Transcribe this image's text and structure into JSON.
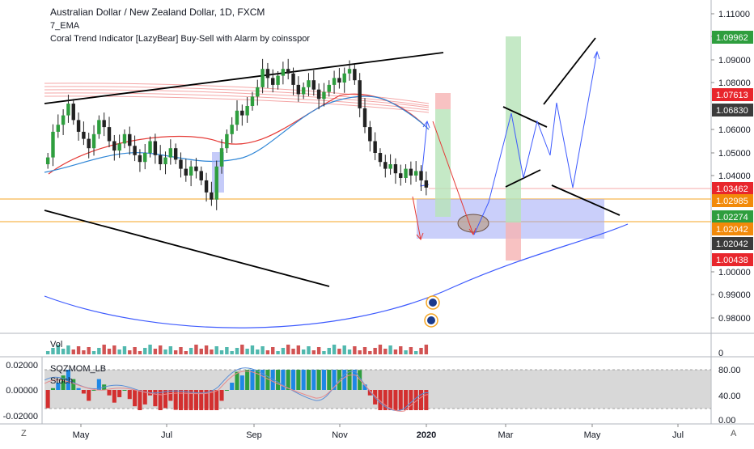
{
  "header": {
    "symbol_line": "Australian Dollar / New Zealand Dollar, 1D, FXCM",
    "indicator_1": "7_EMA",
    "indicator_2": "Coral Trend Indicator [LazyBear] Buy-Sell with Alarm by coinsspor"
  },
  "volume_pane": {
    "label": "Vol",
    "axis_label": "0"
  },
  "oscillator_pane": {
    "label": "SQZMOM_LB",
    "label_2": "Stoch",
    "left_ticks": [
      "0.02000",
      "0.00000",
      "-0.02000"
    ],
    "right_ticks": [
      "80.00",
      "40.00",
      "0.00"
    ]
  },
  "price_axis": {
    "ticks": [
      "1.11000",
      "1.10000",
      "1.09000",
      "1.08000",
      "1.06000",
      "1.05000",
      "1.04000",
      "1.00000",
      "0.99000",
      "0.98000"
    ],
    "badges": [
      {
        "text": "1.09962",
        "color": "#2e9e3e"
      },
      {
        "text": "1.07613",
        "color": "#e8262c"
      },
      {
        "text": "1.06830",
        "color": "#3b3b3b"
      },
      {
        "text": "1.03462",
        "color": "#e8262c"
      },
      {
        "text": "1.02985",
        "color": "#f28a0a"
      },
      {
        "text": "1.02274",
        "color": "#2e9e3e"
      },
      {
        "text": "1.02042",
        "color": "#f28a0a"
      },
      {
        "text": "1.02042",
        "color": "#3b3b3b"
      },
      {
        "text": "1.00438",
        "color": "#e8262c"
      }
    ]
  },
  "time_axis": {
    "labels": [
      "May",
      "Jul",
      "Sep",
      "Nov",
      "2020",
      "Mar",
      "May",
      "Jul"
    ]
  },
  "corners": {
    "left": "Z",
    "right": "A"
  },
  "colors": {
    "up_candle": "#2e9e3e",
    "down_candle": "#222222",
    "ema_blue": "#2f86d6",
    "ema_red": "#e53935",
    "projection_blue": "#3d5afe",
    "support_orange": "#f5a623",
    "zone_purple": "#9fa8f5"
  },
  "chart_data": {
    "type": "candlestick",
    "symbol": "Australian Dollar / New Zealand Dollar, 1D, FXCM",
    "x_axis_labels": [
      "May",
      "Jul",
      "Sep",
      "Nov",
      "2020",
      "Mar",
      "May",
      "Jul"
    ],
    "y_range": [
      0.975,
      1.115
    ],
    "y_ticks": [
      1.11,
      1.1,
      1.09,
      1.08,
      1.06,
      1.05,
      1.04,
      1.0,
      0.99,
      0.98
    ],
    "close_series": [
      1.048,
      1.059,
      1.062,
      1.066,
      1.071,
      1.064,
      1.059,
      1.056,
      1.052,
      1.058,
      1.064,
      1.061,
      1.055,
      1.051,
      1.054,
      1.058,
      1.053,
      1.049,
      1.046,
      1.05,
      1.055,
      1.049,
      1.045,
      1.048,
      1.052,
      1.047,
      1.043,
      1.04,
      1.044,
      1.042,
      1.038,
      1.033,
      1.03,
      1.044,
      1.052,
      1.058,
      1.062,
      1.068,
      1.066,
      1.07,
      1.074,
      1.078,
      1.086,
      1.082,
      1.079,
      1.083,
      1.086,
      1.084,
      1.079,
      1.075,
      1.078,
      1.081,
      1.077,
      1.073,
      1.076,
      1.079,
      1.082,
      1.08,
      1.084,
      1.086,
      1.081,
      1.069,
      1.061,
      1.055,
      1.05,
      1.046,
      1.043,
      1.045,
      1.041,
      1.039,
      1.043,
      1.04,
      1.042,
      1.038,
      1.035
    ],
    "key_levels": [
      1.02985,
      1.02042
    ],
    "last_price": 1.03462,
    "oscillator_range": [
      -0.02,
      0.02
    ],
    "stoch_range": [
      0,
      80
    ]
  }
}
